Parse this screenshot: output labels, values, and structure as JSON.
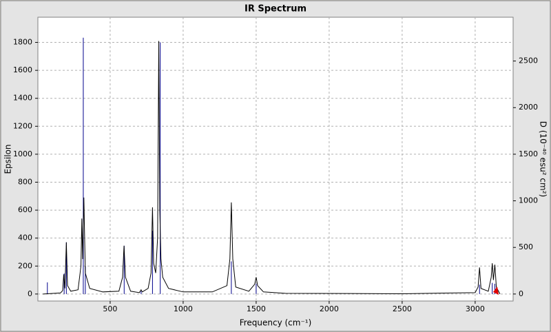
{
  "chart_data": {
    "type": "line",
    "title": "IR Spectrum",
    "x_label": "Frequency (cm⁻¹)",
    "y_label": "Epsilon",
    "y2_label": "D (10⁻⁴⁰ esu² cm²)",
    "xlim": [
      5,
      3260
    ],
    "xticks": [
      500,
      1000,
      1500,
      2000,
      2500,
      3000
    ],
    "ylim": [
      -50,
      1980
    ],
    "yticks": [
      0,
      200,
      400,
      600,
      800,
      1000,
      1200,
      1400,
      1600,
      1800
    ],
    "y2lim": [
      -75,
      2970
    ],
    "y2ticks": [
      0,
      500,
      1000,
      1500,
      2000,
      2500
    ],
    "grid": true,
    "series": [
      {
        "color": "#000000",
        "style": "line",
        "x": [
          40,
          160,
          175,
          182,
          190,
          200,
          208,
          230,
          280,
          300,
          306,
          312,
          320,
          330,
          360,
          450,
          560,
          585,
          595,
          605,
          640,
          700,
          712,
          720,
          760,
          780,
          790,
          798,
          812,
          825,
          833,
          840,
          848,
          860,
          900,
          1000,
          1200,
          1300,
          1320,
          1330,
          1340,
          1360,
          1450,
          1490,
          1500,
          1510,
          1550,
          1700,
          2500,
          3000,
          3020,
          3030,
          3040,
          3090,
          3110,
          3117,
          3125,
          3135,
          3145,
          3170
        ],
        "values": [
          0,
          8,
          25,
          140,
          40,
          370,
          60,
          20,
          30,
          200,
          540,
          250,
          690,
          150,
          40,
          15,
          20,
          120,
          345,
          120,
          20,
          10,
          30,
          15,
          40,
          150,
          620,
          220,
          150,
          400,
          1810,
          600,
          250,
          120,
          40,
          15,
          15,
          60,
          250,
          655,
          250,
          50,
          20,
          70,
          120,
          60,
          15,
          5,
          2,
          10,
          50,
          190,
          40,
          20,
          120,
          220,
          100,
          210,
          50,
          0
        ]
      },
      {
        "color": "#00008b",
        "style": "sticks",
        "axis": "y2",
        "x": [
          70,
          185,
          200,
          316,
          330,
          596,
          712,
          790,
          843,
          1330,
          1500,
          3030,
          3117,
          3135
        ],
        "values": [
          125,
          220,
          555,
          2750,
          300,
          518,
          30,
          680,
          2700,
          350,
          110,
          100,
          120,
          110
        ]
      }
    ]
  }
}
